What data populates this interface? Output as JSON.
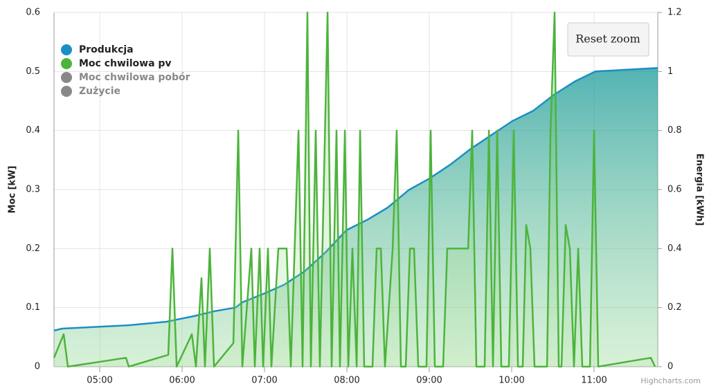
{
  "chart_data": {
    "type": "area",
    "y_label": "Moc [kW]",
    "y2_label": "Energia [kWh]",
    "xlim": [
      4.445,
      11.773
    ],
    "xticks": [
      {
        "value": 5,
        "label": "05:00"
      },
      {
        "value": 6,
        "label": "06:00"
      },
      {
        "value": 7,
        "label": "07:00"
      },
      {
        "value": 8,
        "label": "08:00"
      },
      {
        "value": 9,
        "label": "09:00"
      },
      {
        "value": 10,
        "label": "10:00"
      },
      {
        "value": 11,
        "label": "11:00"
      }
    ],
    "ylim": [
      0,
      0.6
    ],
    "yticks": [
      0,
      0.1,
      0.2,
      0.3,
      0.4,
      0.5,
      0.6
    ],
    "y2lim": [
      0,
      1.2
    ],
    "y2ticks": [
      0,
      0.2,
      0.4,
      0.6,
      0.8,
      1,
      1.2
    ],
    "grid": true,
    "legend": "top-left",
    "series": [
      {
        "name": "Produkcja",
        "color": "#1a8fc4",
        "axis": "y2",
        "x": [
          4.445,
          4.546,
          5.345,
          5.807,
          6.143,
          6.395,
          6.647,
          6.731,
          6.983,
          7.235,
          7.487,
          7.739,
          7.992,
          8.244,
          8.496,
          8.748,
          9.0,
          9.252,
          9.504,
          9.756,
          10.008,
          10.261,
          10.513,
          10.765,
          11.017,
          11.773
        ],
        "values": [
          0.122,
          0.129,
          0.14,
          0.152,
          0.171,
          0.188,
          0.2,
          0.218,
          0.246,
          0.277,
          0.323,
          0.387,
          0.462,
          0.497,
          0.539,
          0.598,
          0.637,
          0.684,
          0.738,
          0.785,
          0.832,
          0.867,
          0.921,
          0.966,
          1.0,
          1.012
        ]
      },
      {
        "name": "Moc chwilowa pv",
        "color": "#4cb43c",
        "x": [
          4.445,
          4.563,
          4.613,
          5.319,
          5.353,
          5.832,
          5.882,
          5.933,
          6.118,
          6.168,
          6.235,
          6.277,
          6.336,
          6.387,
          6.622,
          6.681,
          6.731,
          6.84,
          6.882,
          6.941,
          6.983,
          7.042,
          7.084,
          7.168,
          7.269,
          7.319,
          7.412,
          7.462,
          7.521,
          7.563,
          7.622,
          7.672,
          7.765,
          7.815,
          7.874,
          7.916,
          7.975,
          8.017,
          8.067,
          8.118,
          8.16,
          8.21,
          8.311,
          8.361,
          8.412,
          8.462,
          8.555,
          8.605,
          8.655,
          8.714,
          8.765,
          8.815,
          8.866,
          8.966,
          9.017,
          9.067,
          9.168,
          9.218,
          9.471,
          9.521,
          9.571,
          9.672,
          9.723,
          9.773,
          9.824,
          9.874,
          9.966,
          10.025,
          10.076,
          10.134,
          10.176,
          10.227,
          10.277,
          10.429,
          10.471,
          10.521,
          10.571,
          10.605,
          10.655,
          10.706,
          10.756,
          10.807,
          10.857,
          10.95,
          11.0,
          11.05,
          11.689,
          11.739
        ],
        "values": [
          0.015,
          0.055,
          0,
          0.015,
          0,
          0.02,
          0.2,
          0,
          0.055,
          0,
          0.15,
          0,
          0.2,
          0,
          0.04,
          0.4,
          0,
          0.2,
          0,
          0.2,
          0,
          0.2,
          0,
          0.2,
          0.2,
          0,
          0.4,
          0,
          0.6,
          0,
          0.4,
          0,
          0.6,
          0,
          0.4,
          0,
          0.4,
          0,
          0.2,
          0,
          0.4,
          0,
          0,
          0.2,
          0.2,
          0,
          0.2,
          0.4,
          0,
          0,
          0.2,
          0.2,
          0,
          0,
          0.4,
          0,
          0,
          0.2,
          0.2,
          0.4,
          0,
          0,
          0.4,
          0,
          0.4,
          0,
          0,
          0.4,
          0,
          0,
          0.24,
          0.2,
          0,
          0,
          0.4,
          0.6,
          0,
          0,
          0.24,
          0.2,
          0,
          0.2,
          0,
          0,
          0.4,
          0,
          0.015,
          0
        ]
      }
    ],
    "hidden_series": [
      {
        "name": "Moc chwilowa pobór",
        "color": "#888888"
      },
      {
        "name": "Zużycie",
        "color": "#888888"
      }
    ],
    "button": "Reset zoom",
    "credits": "Highcharts.com"
  }
}
